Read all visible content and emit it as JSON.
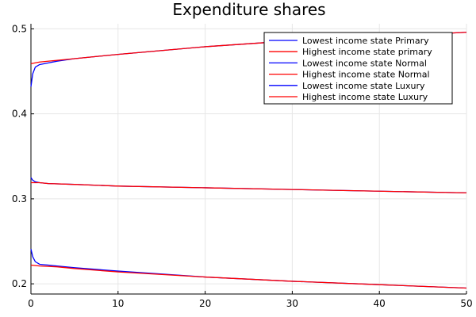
{
  "chart_data": {
    "type": "line",
    "title": "Expenditure shares",
    "xlabel": "",
    "ylabel": "",
    "xlim": [
      0,
      50
    ],
    "ylim": [
      0.188,
      0.506
    ],
    "xticks": [
      0,
      10,
      20,
      30,
      40,
      50
    ],
    "yticks": [
      0.2,
      0.3,
      0.4,
      0.5
    ],
    "xtick_labels": [
      "0",
      "10",
      "20",
      "30",
      "40",
      "50"
    ],
    "ytick_labels": [
      "0.2",
      "0.3",
      "0.4",
      "0.5"
    ],
    "grid": true,
    "legend_position": "top-right",
    "series": [
      {
        "name": "Lowest income state Primary",
        "color": "#0000ff",
        "x": [
          0,
          0.2,
          0.5,
          1,
          2,
          3,
          5,
          10,
          20,
          30,
          40,
          50
        ],
        "y": [
          0.432,
          0.447,
          0.455,
          0.458,
          0.46,
          0.462,
          0.465,
          0.47,
          0.479,
          0.486,
          0.491,
          0.496
        ]
      },
      {
        "name": "Highest income state primary",
        "color": "#ff0000",
        "x": [
          0,
          1,
          3,
          5,
          10,
          20,
          30,
          40,
          50
        ],
        "y": [
          0.459,
          0.461,
          0.463,
          0.465,
          0.47,
          0.479,
          0.486,
          0.491,
          0.496
        ]
      },
      {
        "name": "Lowest income state Normal",
        "color": "#0000ff",
        "x": [
          0,
          0.2,
          0.5,
          1,
          2,
          5,
          10,
          20,
          30,
          40,
          50
        ],
        "y": [
          0.325,
          0.322,
          0.32,
          0.319,
          0.318,
          0.317,
          0.315,
          0.313,
          0.311,
          0.309,
          0.307
        ]
      },
      {
        "name": "Highest income state Normal",
        "color": "#ff0000",
        "x": [
          0,
          1,
          2,
          5,
          10,
          20,
          30,
          40,
          50
        ],
        "y": [
          0.319,
          0.319,
          0.318,
          0.317,
          0.315,
          0.313,
          0.311,
          0.309,
          0.307
        ]
      },
      {
        "name": "Lowest income state Luxury",
        "color": "#0000ff",
        "x": [
          0,
          0.2,
          0.5,
          1,
          2,
          3,
          5,
          10,
          20,
          30,
          40,
          50
        ],
        "y": [
          0.241,
          0.232,
          0.226,
          0.223,
          0.222,
          0.221,
          0.219,
          0.215,
          0.208,
          0.203,
          0.199,
          0.195
        ]
      },
      {
        "name": "Highest income state Luxury",
        "color": "#ff0000",
        "x": [
          0,
          1,
          3,
          5,
          10,
          20,
          30,
          40,
          50
        ],
        "y": [
          0.222,
          0.221,
          0.22,
          0.218,
          0.214,
          0.208,
          0.203,
          0.199,
          0.195
        ]
      }
    ]
  }
}
